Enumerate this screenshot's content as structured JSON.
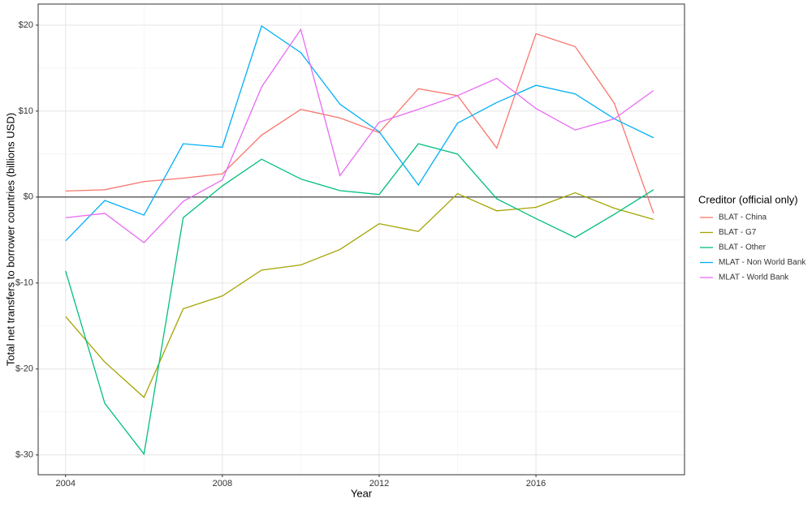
{
  "chart_data": {
    "type": "line",
    "x_label": "Year",
    "y_label": "Total net transfers to borrower countries (billions USD)",
    "legend_title": "Creditor (official only)",
    "legend_position": "right",
    "grid": true,
    "hline": 0,
    "x": [
      2004,
      2005,
      2006,
      2007,
      2008,
      2009,
      2010,
      2011,
      2012,
      2013,
      2014,
      2015,
      2016,
      2017,
      2018,
      2019
    ],
    "xlim": [
      2003.3,
      2019.79
    ],
    "xticks": [
      2004,
      2008,
      2012,
      2016
    ],
    "ylim": [
      -32.3,
      22.45
    ],
    "yticks": [
      {
        "value": -30,
        "label": "$-30"
      },
      {
        "value": -20,
        "label": "$-20"
      },
      {
        "value": -10,
        "label": "$-10"
      },
      {
        "value": 0,
        "label": "$0"
      },
      {
        "value": 10,
        "label": "$10"
      },
      {
        "value": 20,
        "label": "$20"
      }
    ],
    "series": [
      {
        "name": "BLAT - China",
        "color": "#F8766D",
        "values": [
          0.7,
          0.85,
          1.8,
          2.2,
          2.7,
          7.2,
          10.2,
          9.2,
          7.5,
          12.6,
          11.8,
          5.7,
          19.0,
          17.5,
          10.9,
          -1.9
        ]
      },
      {
        "name": "BLAT - G7",
        "color": "#A3A500",
        "values": [
          -13.9,
          -19.2,
          -23.3,
          -13.0,
          -11.5,
          -8.5,
          -7.9,
          -6.1,
          -3.1,
          -4.0,
          0.4,
          -1.6,
          -1.2,
          0.5,
          -1.3,
          -2.6
        ]
      },
      {
        "name": "BLAT - Other",
        "color": "#00BF7D",
        "values": [
          -8.6,
          -24.0,
          -29.9,
          -2.4,
          1.3,
          4.4,
          2.1,
          0.75,
          0.3,
          6.2,
          5.0,
          -0.2,
          -2.5,
          -4.7,
          -2.0,
          0.85
        ]
      },
      {
        "name": "MLAT - Non World Bank",
        "color": "#00B0F6",
        "values": [
          -5.1,
          -0.4,
          -2.1,
          6.2,
          5.8,
          19.9,
          16.8,
          10.8,
          7.6,
          1.4,
          8.6,
          11.0,
          13.0,
          12.0,
          9.1,
          6.9
        ]
      },
      {
        "name": "MLAT - World Bank",
        "color": "#E76BF3",
        "values": [
          -2.4,
          -1.9,
          -5.3,
          -0.5,
          2.0,
          12.8,
          19.5,
          2.5,
          8.7,
          10.2,
          11.8,
          13.8,
          10.3,
          7.8,
          9.1,
          12.4
        ]
      }
    ]
  }
}
